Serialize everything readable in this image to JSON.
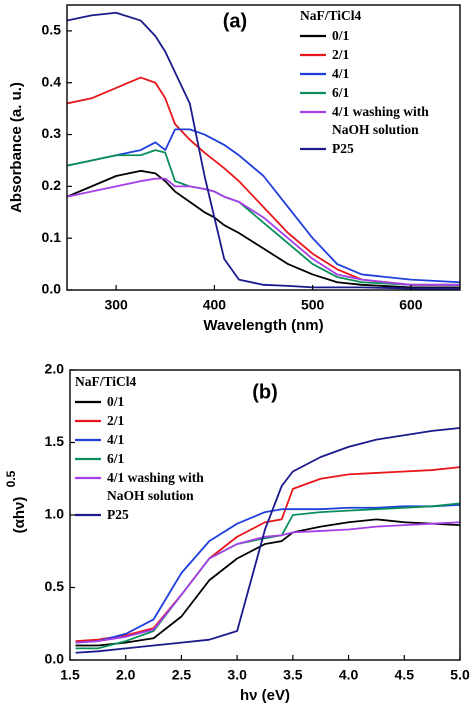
{
  "chart_data": [
    {
      "type": "line",
      "annotation": "(a)",
      "x_label": "Wavelength (nm)",
      "y_label": "Absorbance (a. u.)",
      "legend_title": "NaF/TiCl4",
      "x": [
        250,
        275,
        300,
        325,
        340,
        350,
        360,
        375,
        390,
        400,
        410,
        425,
        450,
        475,
        500,
        525,
        550,
        600,
        650
      ],
      "series": [
        {
          "name": "0/1",
          "color": "#000000",
          "values": [
            0.18,
            0.2,
            0.22,
            0.23,
            0.225,
            0.21,
            0.19,
            0.17,
            0.15,
            0.14,
            0.125,
            0.11,
            0.08,
            0.05,
            0.03,
            0.015,
            0.01,
            0.005,
            0.005
          ]
        },
        {
          "name": "2/1",
          "color": "#e8161a",
          "values": [
            0.36,
            0.37,
            0.39,
            0.41,
            0.4,
            0.37,
            0.32,
            0.29,
            0.265,
            0.25,
            0.235,
            0.21,
            0.16,
            0.11,
            0.07,
            0.04,
            0.02,
            0.01,
            0.01
          ]
        },
        {
          "name": "4/1",
          "color": "#1f3fdc",
          "values": [
            0.24,
            0.25,
            0.26,
            0.27,
            0.285,
            0.27,
            0.31,
            0.31,
            0.3,
            0.29,
            0.28,
            0.26,
            0.22,
            0.16,
            0.1,
            0.05,
            0.03,
            0.02,
            0.015
          ]
        },
        {
          "name": "6/1",
          "color": "#0a8f5a",
          "values": [
            0.24,
            0.25,
            0.26,
            0.26,
            0.27,
            0.265,
            0.21,
            0.2,
            0.195,
            0.19,
            0.18,
            0.17,
            0.13,
            0.09,
            0.05,
            0.025,
            0.015,
            0.01,
            0.01
          ]
        },
        {
          "name": "4/1 washing with NaOH solution",
          "color": "#a53fe8",
          "values": [
            0.18,
            0.19,
            0.2,
            0.21,
            0.215,
            0.215,
            0.2,
            0.2,
            0.195,
            0.19,
            0.18,
            0.17,
            0.14,
            0.1,
            0.06,
            0.03,
            0.02,
            0.01,
            0.01
          ]
        },
        {
          "name": "P25",
          "color": "#1a1a8c",
          "values": [
            0.52,
            0.53,
            0.535,
            0.52,
            0.49,
            0.46,
            0.42,
            0.36,
            0.22,
            0.14,
            0.06,
            0.02,
            0.01,
            0.008,
            0.005,
            0.005,
            0.005,
            0.003,
            0.003
          ]
        }
      ],
      "xlim": [
        250,
        650
      ],
      "xticks": [
        300,
        400,
        500,
        600
      ],
      "ylim": [
        0,
        0.55
      ],
      "yticks": [
        {
          "value": 0,
          "label": "0.0"
        },
        0.1,
        0.2,
        0.3,
        0.4,
        0.5
      ]
    },
    {
      "type": "line",
      "annotation": "(b)",
      "x_label": "hν (eV)",
      "y_label": "(αhν)",
      "y_label_superscript": "0.5",
      "legend_title": "NaF/TiCl4",
      "x": [
        1.55,
        1.75,
        2.0,
        2.25,
        2.5,
        2.75,
        3.0,
        3.25,
        3.4,
        3.5,
        3.75,
        4.0,
        4.25,
        4.5,
        4.75,
        5.0
      ],
      "series": [
        {
          "name": "0/1",
          "color": "#000000",
          "values": [
            0.1,
            0.1,
            0.12,
            0.15,
            0.3,
            0.55,
            0.7,
            0.8,
            0.82,
            0.88,
            0.92,
            0.95,
            0.97,
            0.95,
            0.94,
            0.93
          ]
        },
        {
          "name": "2/1",
          "color": "#e8161a",
          "values": [
            0.13,
            0.14,
            0.17,
            0.22,
            0.45,
            0.7,
            0.85,
            0.95,
            0.97,
            1.18,
            1.25,
            1.28,
            1.29,
            1.3,
            1.31,
            1.33
          ]
        },
        {
          "name": "4/1",
          "color": "#1f3fdc",
          "values": [
            0.12,
            0.13,
            0.18,
            0.28,
            0.6,
            0.82,
            0.94,
            1.02,
            1.04,
            1.04,
            1.04,
            1.05,
            1.05,
            1.06,
            1.06,
            1.07
          ]
        },
        {
          "name": "6/1",
          "color": "#0a8f5a",
          "values": [
            0.08,
            0.08,
            0.13,
            0.2,
            0.45,
            0.7,
            0.8,
            0.84,
            0.86,
            1.0,
            1.02,
            1.03,
            1.04,
            1.05,
            1.06,
            1.08
          ]
        },
        {
          "name": "4/1 washing with NaOH solution",
          "color": "#a53fe8",
          "values": [
            0.12,
            0.13,
            0.16,
            0.21,
            0.45,
            0.7,
            0.8,
            0.85,
            0.86,
            0.88,
            0.89,
            0.9,
            0.92,
            0.93,
            0.94,
            0.95
          ]
        },
        {
          "name": "P25",
          "color": "#1a1a8c",
          "values": [
            0.05,
            0.06,
            0.08,
            0.1,
            0.12,
            0.14,
            0.2,
            0.9,
            1.2,
            1.3,
            1.4,
            1.47,
            1.52,
            1.55,
            1.58,
            1.6
          ]
        }
      ],
      "xlim": [
        1.5,
        5.0
      ],
      "xticks": [
        1.5,
        {
          "value": 2,
          "label": "2.0"
        },
        2.5,
        {
          "value": 3,
          "label": "3.0"
        },
        3.5,
        {
          "value": 4,
          "label": "4.0"
        },
        4.5,
        {
          "value": 5,
          "label": "5.0"
        }
      ],
      "ylim": [
        0,
        2.0
      ],
      "yticks": [
        {
          "value": 0,
          "label": "0.0"
        },
        0.5,
        {
          "value": 1,
          "label": "1.0"
        },
        1.5,
        {
          "value": 2,
          "label": "2.0"
        }
      ]
    }
  ]
}
